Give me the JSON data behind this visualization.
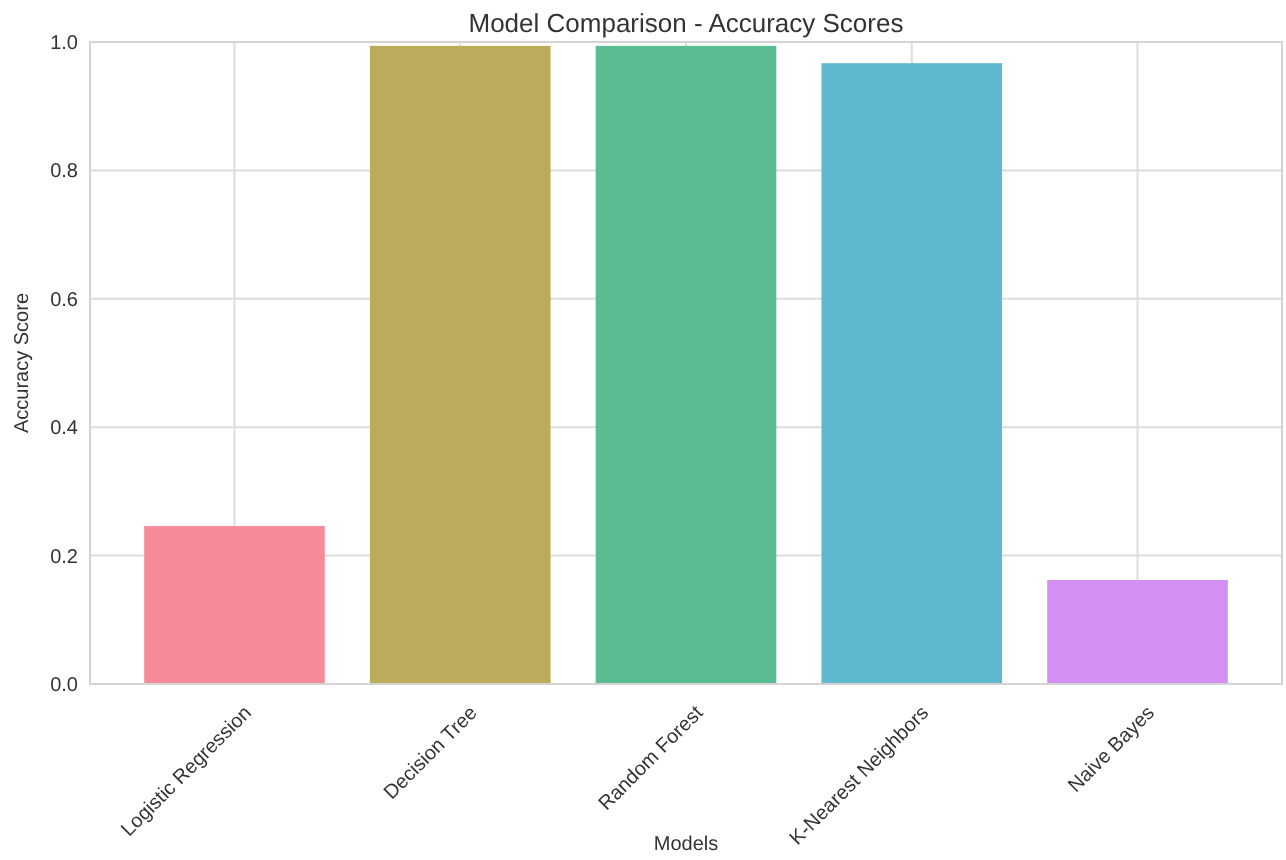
{
  "chart_data": {
    "type": "bar",
    "title": "Model Comparison - Accuracy Scores",
    "xlabel": "Models",
    "ylabel": "Accuracy Score",
    "categories": [
      "Logistic Regression",
      "Decision Tree",
      "Random Forest",
      "K-Nearest Neighbors",
      "Naive Bayes"
    ],
    "values": [
      0.246,
      0.994,
      0.994,
      0.967,
      0.162
    ],
    "colors": [
      "#f68a9b",
      "#bbab5b",
      "#5bbc91",
      "#5fb8ce",
      "#d38ff2"
    ],
    "ylim": [
      0,
      1
    ],
    "yticks": [
      {
        "value": 0,
        "label": "0.0"
      },
      {
        "value": 0.2,
        "label": "0.2"
      },
      {
        "value": 0.4,
        "label": "0.4"
      },
      {
        "value": 0.6,
        "label": "0.6"
      },
      {
        "value": 0.8,
        "label": "0.8"
      },
      {
        "value": 1,
        "label": "1.0"
      }
    ],
    "grid": true
  }
}
